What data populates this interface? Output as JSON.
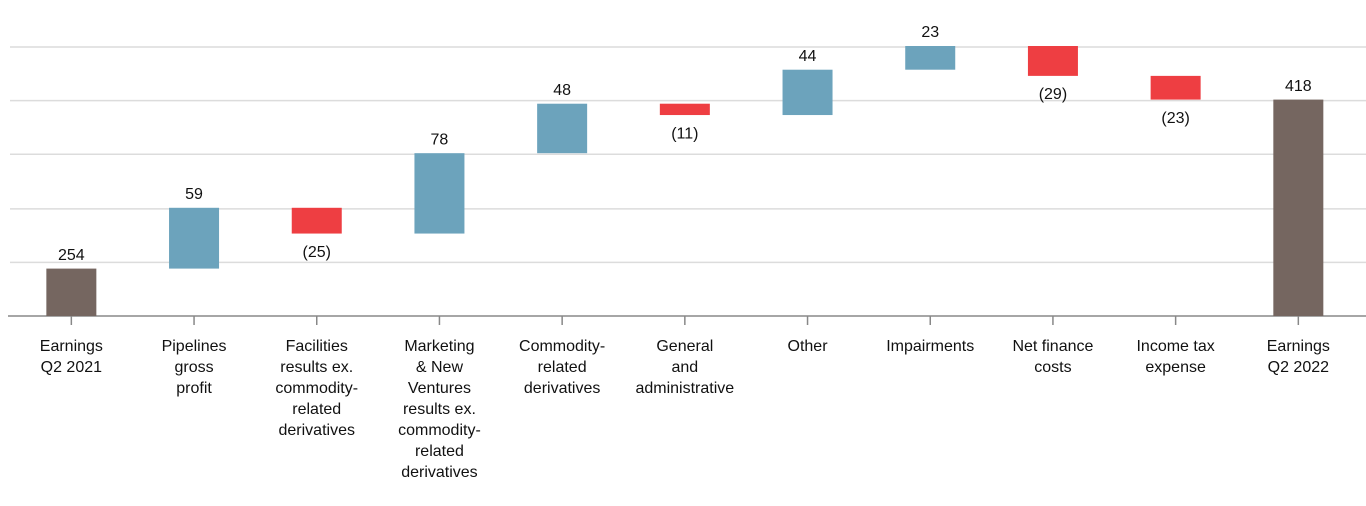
{
  "chart_data": {
    "type": "waterfall",
    "categories": [
      "Earnings\nQ2 2021",
      "Pipelines\ngross\nprofit",
      "Facilities\nresults ex.\ncommodity-\nrelated\nderivatives",
      "Marketing\n& New\nVentures\nresults ex.\ncommodity-\nrelated\nderivatives",
      "Commodity-\nrelated\nderivatives",
      "General\nand\nadministrative",
      "Other",
      "Impairments",
      "Net finance\ncosts",
      "Income tax\nexpense",
      "Earnings\nQ2 2022"
    ],
    "values": [
      254,
      59,
      -25,
      78,
      48,
      -11,
      44,
      23,
      -29,
      -23,
      418
    ],
    "value_labels": [
      "254",
      "59",
      "(25)",
      "78",
      "48",
      "(11)",
      "44",
      "23",
      "(29)",
      "(23)",
      "418"
    ],
    "color_total": "#756660",
    "color_increase": "#6ca3bc",
    "color_decrease": "#ee3e42",
    "ylim": [
      208,
      470
    ],
    "yticks": [
      260,
      312,
      365,
      417,
      469
    ],
    "grid": true
  }
}
